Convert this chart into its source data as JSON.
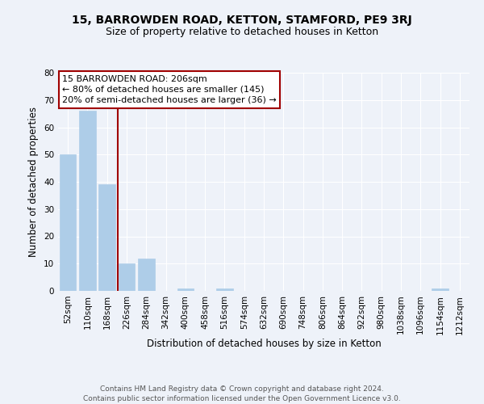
{
  "title": "15, BARROWDEN ROAD, KETTON, STAMFORD, PE9 3RJ",
  "subtitle": "Size of property relative to detached houses in Ketton",
  "xlabel": "Distribution of detached houses by size in Ketton",
  "ylabel": "Number of detached properties",
  "bar_labels": [
    "52sqm",
    "110sqm",
    "168sqm",
    "226sqm",
    "284sqm",
    "342sqm",
    "400sqm",
    "458sqm",
    "516sqm",
    "574sqm",
    "632sqm",
    "690sqm",
    "748sqm",
    "806sqm",
    "864sqm",
    "922sqm",
    "980sqm",
    "1038sqm",
    "1096sqm",
    "1154sqm",
    "1212sqm"
  ],
  "bar_values": [
    50,
    66,
    39,
    10,
    12,
    0,
    1,
    0,
    1,
    0,
    0,
    0,
    0,
    0,
    0,
    0,
    0,
    0,
    0,
    1,
    0
  ],
  "bar_color": "#aecde8",
  "bar_edge_color": "#aecde8",
  "ylim": [
    0,
    80
  ],
  "yticks": [
    0,
    10,
    20,
    30,
    40,
    50,
    60,
    70,
    80
  ],
  "property_line_x": 2.535,
  "property_line_color": "#a00000",
  "annotation_line1": "15 BARROWDEN ROAD: 206sqm",
  "annotation_line2": "← 80% of detached houses are smaller (145)",
  "annotation_line3": "20% of semi-detached houses are larger (36) →",
  "annotation_box_color": "#ffffff",
  "annotation_box_edge_color": "#a00000",
  "footer_line1": "Contains HM Land Registry data © Crown copyright and database right 2024.",
  "footer_line2": "Contains public sector information licensed under the Open Government Licence v3.0.",
  "background_color": "#eef2f9",
  "grid_color": "#ffffff",
  "title_fontsize": 10,
  "subtitle_fontsize": 9,
  "axis_label_fontsize": 8.5,
  "tick_fontsize": 7.5,
  "annotation_fontsize": 8,
  "footer_fontsize": 6.5
}
